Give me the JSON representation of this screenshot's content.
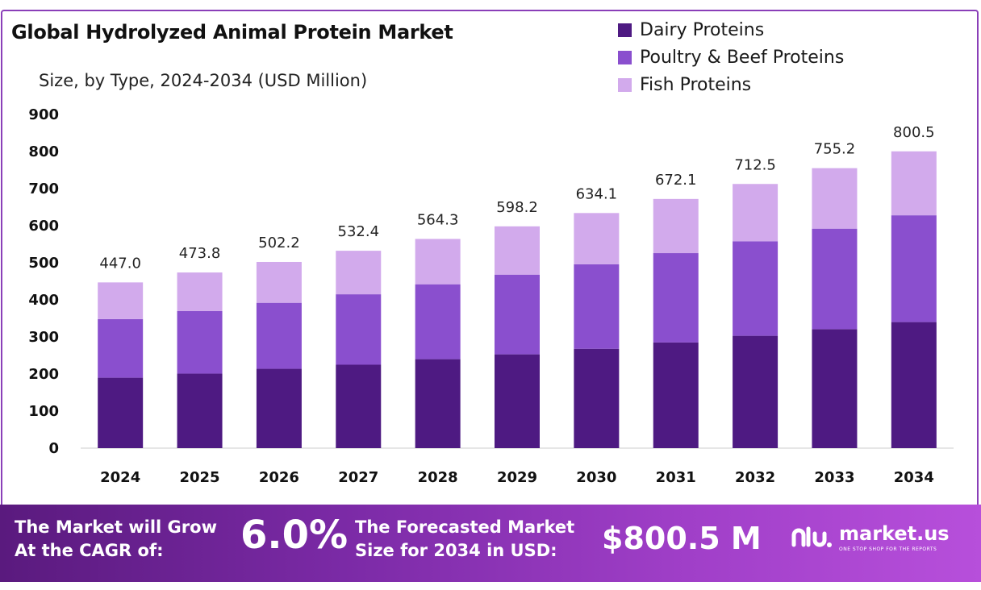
{
  "header": {
    "title": "Global Hydrolyzed Animal Protein Market",
    "subtitle": "Size, by Type, 2024-2034 (USD Million)"
  },
  "legend": [
    {
      "label": "Dairy Proteins",
      "color": "#4e1a82"
    },
    {
      "label": "Poultry & Beef Proteins",
      "color": "#8a4fce"
    },
    {
      "label": "Fish Proteins",
      "color": "#d2aaec"
    }
  ],
  "chart_data": {
    "type": "bar",
    "stacked": true,
    "categories": [
      "2024",
      "2025",
      "2026",
      "2027",
      "2028",
      "2029",
      "2030",
      "2031",
      "2032",
      "2033",
      "2034"
    ],
    "series": [
      {
        "name": "Dairy Proteins",
        "color": "#4e1a82",
        "values": [
          190,
          201,
          214,
          225,
          240,
          253,
          268,
          285,
          303,
          321,
          340
        ]
      },
      {
        "name": "Poultry & Beef Proteins",
        "color": "#8a4fce",
        "values": [
          158,
          169,
          178,
          190,
          202,
          215,
          228,
          241,
          255,
          271,
          288
        ]
      },
      {
        "name": "Fish Proteins",
        "color": "#d2aaec",
        "values": [
          99,
          103.8,
          110.2,
          117.4,
          122.3,
          130.2,
          138.1,
          146.1,
          154.5,
          163.2,
          172.5
        ]
      }
    ],
    "totals": [
      "447.0",
      "473.8",
      "502.2",
      "532.4",
      "564.3",
      "598.2",
      "634.1",
      "672.1",
      "712.5",
      "755.2",
      "800.5"
    ],
    "yticks": [
      "0",
      "100",
      "200",
      "300",
      "400",
      "500",
      "600",
      "700",
      "800",
      "900"
    ],
    "ylim": [
      0,
      900
    ],
    "grid": false,
    "legend_position": "top-right"
  },
  "banner": {
    "cagr_label_line1": "The Market will Grow",
    "cagr_label_line2": "At the CAGR of:",
    "cagr_value": "6.0%",
    "forecast_label_line1": "The Forecasted Market",
    "forecast_label_line2": "Size for 2034 in USD:",
    "forecast_value": "$800.5 M",
    "logo_name": "market.us",
    "logo_tagline": "ONE STOP SHOP FOR THE REPORTS",
    "logo_icon": "market-us-logo-icon"
  }
}
